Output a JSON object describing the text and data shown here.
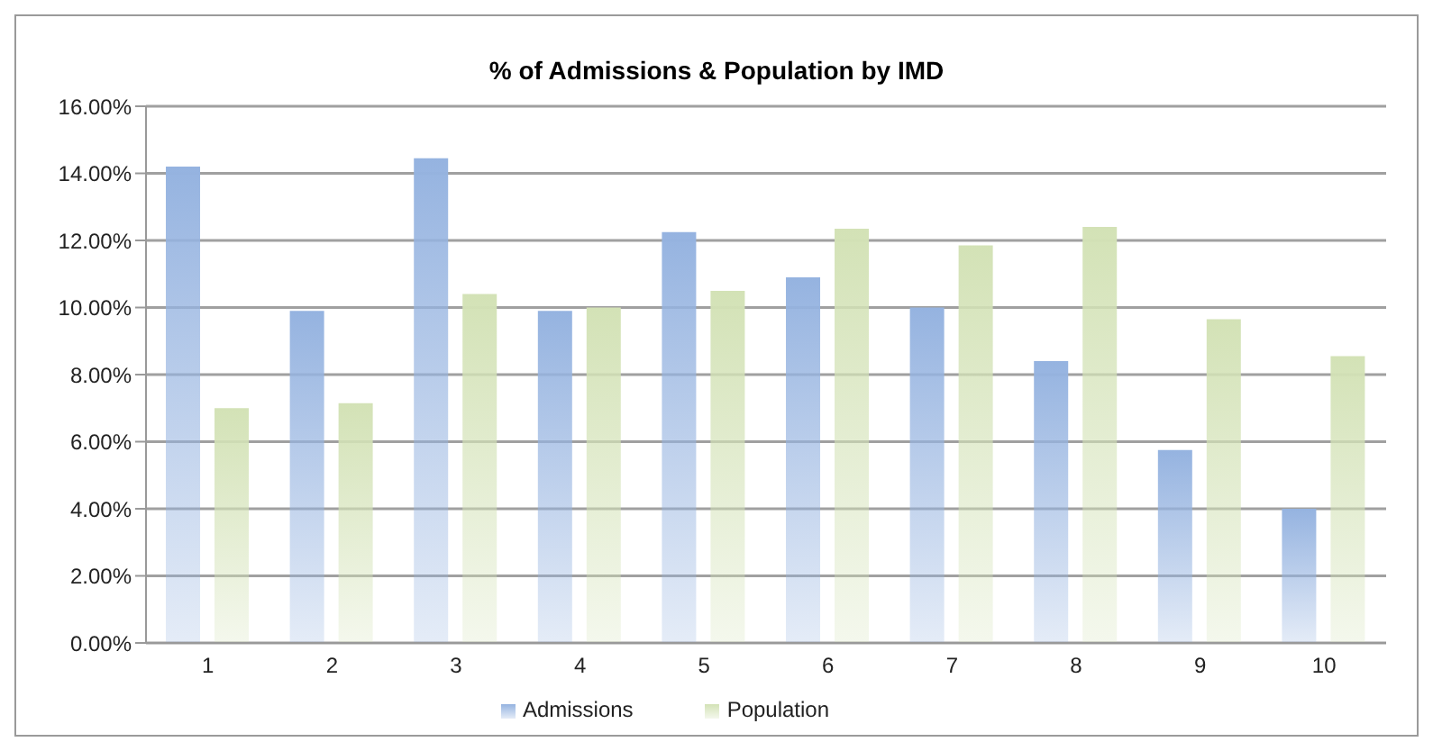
{
  "chart_data": {
    "type": "bar",
    "title": "% of Admissions & Population by IMD",
    "categories": [
      "1",
      "2",
      "3",
      "4",
      "5",
      "6",
      "7",
      "8",
      "9",
      "10"
    ],
    "series": [
      {
        "name": "Admissions",
        "color": "#95b3e0",
        "values": [
          14.2,
          9.9,
          14.45,
          9.9,
          12.25,
          10.9,
          10.0,
          8.4,
          5.75,
          4.0
        ]
      },
      {
        "name": "Population",
        "color": "#d3e2b6",
        "values": [
          7.0,
          7.15,
          10.4,
          10.0,
          10.5,
          12.35,
          11.85,
          12.4,
          9.65,
          8.55
        ]
      }
    ],
    "ylim": [
      0,
      16
    ],
    "yticks": [
      {
        "value": 0,
        "label": "0.00%"
      },
      {
        "value": 2,
        "label": "2.00%"
      },
      {
        "value": 4,
        "label": "4.00%"
      },
      {
        "value": 6,
        "label": "6.00%"
      },
      {
        "value": 8,
        "label": "8.00%"
      },
      {
        "value": 10,
        "label": "10.00%"
      },
      {
        "value": 12,
        "label": "12.00%"
      },
      {
        "value": 14,
        "label": "14.00%"
      },
      {
        "value": 16,
        "label": "16.00%"
      }
    ],
    "grid": "y",
    "legend": "bottom"
  }
}
